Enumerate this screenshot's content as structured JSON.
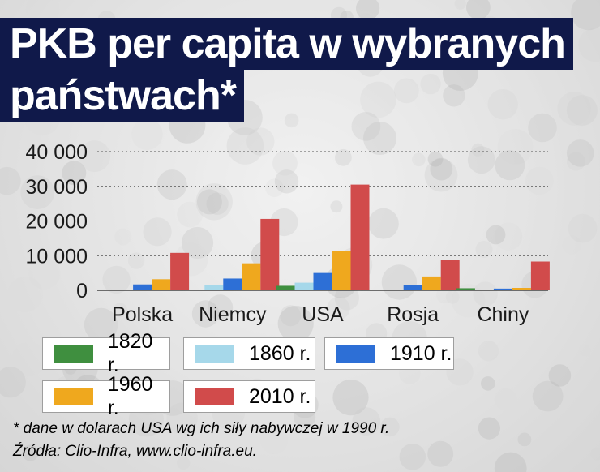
{
  "title_line1": "PKB per capita w wybranych",
  "title_line2": "państwach*",
  "chart_data": {
    "type": "bar",
    "title": "PKB per capita w wybranych państwach*",
    "categories": [
      "Polska",
      "Niemcy",
      "USA",
      "Rosja",
      "Chiny"
    ],
    "series": [
      {
        "name": "1820 r.",
        "color": "#3f8f3f",
        "values": [
          0,
          0,
          1300,
          0,
          600
        ]
      },
      {
        "name": "1860 r.",
        "color": "#a6d8ea",
        "values": [
          0,
          1600,
          2200,
          0,
          0
        ]
      },
      {
        "name": "1910 r.",
        "color": "#2d6fd6",
        "values": [
          1700,
          3400,
          5000,
          1500,
          500
        ]
      },
      {
        "name": "1960 r.",
        "color": "#efa81e",
        "values": [
          3200,
          7800,
          11300,
          4000,
          700
        ]
      },
      {
        "name": "2010 r.",
        "color": "#d14b4b",
        "values": [
          10800,
          20600,
          30500,
          8700,
          8300
        ]
      }
    ],
    "yticks": [
      "0",
      "10 000",
      "20 000",
      "30 000",
      "40 000"
    ],
    "ylim": [
      0,
      40000
    ],
    "grid": true,
    "legend": "bottom"
  },
  "legend": [
    {
      "label": "1820 r.",
      "color": "#3f8f3f"
    },
    {
      "label": "1860 r.",
      "color": "#a6d8ea"
    },
    {
      "label": "1910 r.",
      "color": "#2d6fd6"
    },
    {
      "label": "1960 r.",
      "color": "#efa81e"
    },
    {
      "label": "2010 r.",
      "color": "#d14b4b"
    }
  ],
  "footnote": "* dane w dolarach USA wg ich siły nabywczej w 1990 r.",
  "source": "Źródła: Clio-Infra, www.clio-infra.eu."
}
